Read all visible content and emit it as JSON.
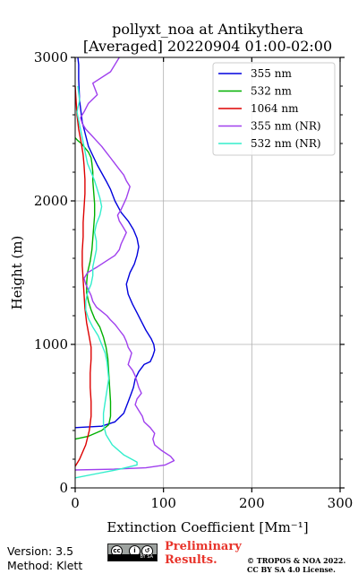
{
  "chart_data": {
    "type": "line",
    "title": "pollyxt_noa at Antikythera",
    "subtitle": "[Averaged] 20220904 01:00-02:00",
    "xlabel": "Extinction Coefficient [Mm⁻¹]",
    "ylabel": "Height (m)",
    "xlim": [
      0,
      300
    ],
    "ylim": [
      0,
      3000
    ],
    "xticks": [
      0,
      100,
      200,
      300
    ],
    "yticks": [
      0,
      1000,
      2000,
      3000
    ],
    "grid": true,
    "legend_position": "top-right",
    "series": [
      {
        "name": "355 nm",
        "color": "#0000dd",
        "x": [
          0,
          30,
          45,
          55,
          60,
          63,
          66,
          68,
          72,
          78,
          85,
          88,
          90,
          89,
          86,
          80,
          75,
          70,
          65,
          60,
          58,
          62,
          67,
          70,
          72,
          70,
          66,
          60,
          52,
          45,
          40,
          35,
          25,
          15,
          8,
          5,
          4,
          4,
          3
        ],
        "y": [
          420,
          430,
          460,
          520,
          600,
          650,
          700,
          760,
          810,
          860,
          880,
          920,
          960,
          1000,
          1040,
          1100,
          1160,
          1220,
          1280,
          1350,
          1420,
          1500,
          1560,
          1620,
          1680,
          1740,
          1800,
          1860,
          1920,
          2000,
          2080,
          2140,
          2250,
          2380,
          2550,
          2700,
          2850,
          2950,
          3000
        ]
      },
      {
        "name": "532 nm",
        "color": "#00b000",
        "x": [
          0,
          15,
          30,
          38,
          40,
          40,
          39,
          38,
          37,
          35,
          32,
          28,
          22,
          18,
          15,
          13,
          13,
          14,
          17,
          19,
          20,
          21,
          22,
          22,
          21,
          20,
          20,
          19,
          18,
          15,
          11,
          7,
          3,
          0
        ],
        "y": [
          340,
          360,
          400,
          440,
          500,
          600,
          700,
          800,
          900,
          980,
          1050,
          1120,
          1180,
          1240,
          1300,
          1360,
          1430,
          1500,
          1580,
          1660,
          1740,
          1820,
          1900,
          1980,
          2060,
          2140,
          2200,
          2260,
          2300,
          2340,
          2370,
          2400,
          2420,
          2440
        ]
      },
      {
        "name": "1064 nm",
        "color": "#dd0000",
        "x": [
          0,
          5,
          12,
          16,
          18,
          18,
          17,
          17,
          18,
          18,
          16,
          13,
          11,
          10,
          9,
          8,
          8,
          9,
          9,
          10,
          11,
          11,
          10,
          9,
          7,
          4,
          2,
          1,
          0
        ],
        "y": [
          150,
          200,
          300,
          400,
          500,
          600,
          700,
          800,
          900,
          980,
          1050,
          1150,
          1250,
          1350,
          1450,
          1550,
          1650,
          1750,
          1850,
          1950,
          2050,
          2150,
          2250,
          2320,
          2400,
          2500,
          2600,
          2700,
          2800
        ]
      },
      {
        "name": "355 nm (NR)",
        "color": "#a040ee",
        "x": [
          0,
          40,
          80,
          102,
          112,
          108,
          98,
          90,
          88,
          90,
          85,
          78,
          76,
          72,
          68,
          70,
          75,
          72,
          70,
          68,
          65,
          60,
          62,
          64,
          60,
          58,
          55,
          50,
          45,
          40,
          36,
          30,
          24,
          20,
          18,
          15,
          12,
          10,
          14,
          25,
          35,
          45,
          50,
          52,
          55,
          58,
          54,
          50,
          48,
          52,
          55,
          58,
          60,
          62,
          58,
          55,
          50,
          45,
          40,
          35,
          30,
          24,
          18,
          12,
          8,
          6,
          10,
          15,
          25,
          20,
          40,
          50
        ],
        "y": [
          125,
          130,
          140,
          160,
          190,
          220,
          260,
          300,
          340,
          380,
          420,
          460,
          500,
          540,
          580,
          620,
          660,
          700,
          740,
          780,
          820,
          860,
          900,
          940,
          980,
          1020,
          1060,
          1100,
          1140,
          1170,
          1200,
          1230,
          1260,
          1300,
          1340,
          1380,
          1420,
          1460,
          1500,
          1540,
          1580,
          1620,
          1660,
          1700,
          1740,
          1780,
          1820,
          1860,
          1900,
          1940,
          1980,
          2020,
          2060,
          2100,
          2140,
          2180,
          2220,
          2260,
          2300,
          2340,
          2380,
          2420,
          2460,
          2500,
          2540,
          2580,
          2620,
          2680,
          2740,
          2820,
          2900,
          3000
        ]
      },
      {
        "name": "532 nm (NR)",
        "color": "#33eecc",
        "x": [
          0,
          25,
          50,
          70,
          70,
          55,
          42,
          35,
          32,
          32,
          34,
          36,
          38,
          37,
          36,
          34,
          30,
          26,
          20,
          15,
          12,
          12,
          14,
          18,
          20,
          20,
          22,
          24,
          24,
          22,
          24,
          28,
          30,
          28,
          25,
          22,
          18,
          14,
          12,
          10,
          8,
          6,
          4,
          2,
          5,
          3
        ],
        "y": [
          70,
          100,
          130,
          160,
          180,
          230,
          300,
          370,
          440,
          520,
          600,
          680,
          760,
          820,
          880,
          940,
          1000,
          1060,
          1120,
          1180,
          1240,
          1300,
          1360,
          1420,
          1480,
          1540,
          1600,
          1660,
          1720,
          1780,
          1840,
          1900,
          1960,
          2020,
          2080,
          2140,
          2200,
          2260,
          2320,
          2380,
          2440,
          2500,
          2560,
          2620,
          2700,
          2800
        ]
      }
    ]
  },
  "footer": {
    "version": "Version: 3.5",
    "method": "Method: Klett",
    "license_badge_text": "BY SA",
    "preliminary_line1": "Preliminary",
    "preliminary_line2": "Results.",
    "copyright_line1": "© TROPOS & NOA 2022.",
    "copyright_line2": "CC BY SA 4.0 License."
  }
}
